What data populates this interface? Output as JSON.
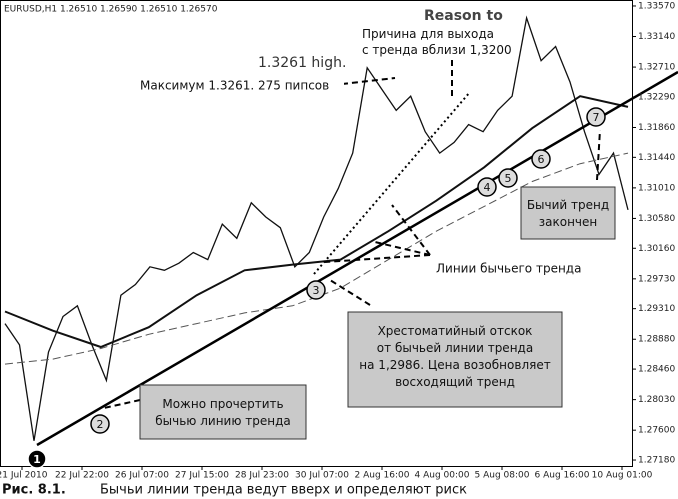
{
  "chart_data": {
    "type": "line",
    "title": "EURUSD,H1  1.26510 1.26590 1.26510 1.26570",
    "ylim": [
      1.27096,
      1.33654
    ],
    "yticks": [
      {
        "value": 1.3357,
        "label": "1.33570"
      },
      {
        "value": 1.3314,
        "label": "1.33140"
      },
      {
        "value": 1.3271,
        "label": "1.32710"
      },
      {
        "value": 1.3229,
        "label": "1.32290"
      },
      {
        "value": 1.3186,
        "label": "1.31860"
      },
      {
        "value": 1.3144,
        "label": "1.31440"
      },
      {
        "value": 1.3101,
        "label": "1.31010"
      },
      {
        "value": 1.3058,
        "label": "1.30580"
      },
      {
        "value": 1.3016,
        "label": "1.30160"
      },
      {
        "value": 1.2973,
        "label": "1.29730"
      },
      {
        "value": 1.2931,
        "label": "1.29310"
      },
      {
        "value": 1.2888,
        "label": "1.28880"
      },
      {
        "value": 1.2846,
        "label": "1.28460"
      },
      {
        "value": 1.2803,
        "label": "1.28030"
      },
      {
        "value": 1.276,
        "label": "1.27600"
      },
      {
        "value": 1.2718,
        "label": "1.27180"
      }
    ],
    "xtick_labels": [
      "21 Jul 2010",
      "22 Jul 22:00",
      "26 Jul 07:00",
      "27 Jul 15:00",
      "28 Jul 23:00",
      "30 Jul 07:00",
      "2 Aug 16:00",
      "4 Aug 00:00",
      "5 Aug 08:00",
      "6 Aug 16:00",
      "10 Aug 01:00"
    ],
    "series": [
      {
        "color": "#111111",
        "values": [
          1.291,
          1.288,
          1.2745,
          1.287,
          1.292,
          1.2935,
          1.288,
          1.283,
          1.295,
          1.2965,
          1.299,
          1.2985,
          1.2995,
          1.301,
          1.3,
          1.305,
          1.303,
          1.308,
          1.306,
          1.3045,
          1.299,
          1.301,
          1.306,
          1.31,
          1.315,
          1.327,
          1.324,
          1.321,
          1.323,
          1.318,
          1.315,
          1.3165,
          1.319,
          1.318,
          1.321,
          1.323,
          1.334,
          1.328,
          1.33,
          1.325,
          1.318,
          1.312,
          1.315,
          1.307
        ]
      },
      {
        "color": "#111111",
        "values": [
          1.2927,
          1.29,
          1.2877,
          1.2905,
          1.295,
          1.2985,
          1.2993,
          1.3,
          1.304,
          1.3083,
          1.313,
          1.3185,
          1.323,
          1.3215
        ]
      },
      {
        "color": "#555555",
        "values": [
          1.2853,
          1.286,
          1.2875,
          1.2895,
          1.291,
          1.2925,
          1.2935,
          1.296,
          1.3,
          1.304,
          1.3075,
          1.311,
          1.3135,
          1.315
        ]
      }
    ],
    "points": [
      "1",
      "2",
      "3",
      "4",
      "5",
      "6",
      "7"
    ],
    "annotations": {
      "reason": "Reason to",
      "exit": [
        "Причина для выхода",
        "с тренда вблизи 1,3200"
      ],
      "high": "1.3261 high.",
      "max": "Максимум 1.3261. 275 пипсов",
      "lines": "Линии бычьего тренда",
      "ended": [
        "Бычий тренд",
        "закончен"
      ],
      "bounce": [
        "Хрестоматийный отскок",
        "от бычьей линии тренда",
        "на 1,2986. Цена возобновляет",
        "восходящий тренд"
      ],
      "draw": [
        "Можно прочертить",
        "бычью линию тренда"
      ]
    },
    "caption": {
      "label": "Рис. 8.1.",
      "text": "Бычьи линии тренда ведут вверх и определяют риск"
    }
  }
}
